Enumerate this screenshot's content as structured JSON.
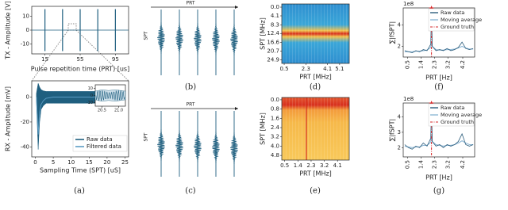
{
  "panels": {
    "a_tx": {
      "ylabel": "TX - Amplitude [V]",
      "xlabel": "Pulse repetition time (PRT) [us]",
      "xlim": [
        0,
        110
      ],
      "ylim": [
        -17,
        17
      ],
      "xticks": [
        15,
        55,
        95
      ],
      "yticks": [
        10,
        0,
        -10
      ],
      "pulses_x": [
        15,
        35,
        55,
        75,
        95
      ],
      "pulse_amplitude": 15,
      "color": "#1f5f7f"
    },
    "a_rx": {
      "ylabel": "RX - Amplitude [mV]",
      "xlabel": "Sampling Time (SPT) [uS]",
      "xlim": [
        -1,
        26
      ],
      "ylim": [
        -48,
        13
      ],
      "xticks": [
        0,
        5,
        10,
        15,
        20,
        25
      ],
      "yticks": [
        0,
        -20,
        -40
      ],
      "legend": "lower right",
      "series": [
        {
          "name": "Raw data",
          "color": "#1f5f7f",
          "x": [
            0.3,
            0.8,
            1.2,
            1.6,
            2.2,
            3,
            5,
            10,
            15,
            20,
            25
          ],
          "upper": [
            3,
            11,
            8,
            6,
            5,
            4.5,
            4.5,
            4.5,
            4.5,
            4.5,
            4.5
          ],
          "lower": [
            -3,
            -42,
            -20,
            -10,
            -7,
            -5,
            -5,
            -5,
            -5,
            -5,
            -5
          ]
        },
        {
          "name": "Filtered data",
          "color": "#5b9cc4",
          "x": [
            0.3,
            0.8,
            1.2,
            1.6,
            2.2,
            3,
            5,
            10,
            15,
            20,
            25
          ],
          "values": [
            0,
            -30,
            -12,
            -6,
            -3,
            -1,
            0,
            0,
            0,
            0,
            0
          ]
        }
      ]
    },
    "a_inset": {
      "xlim": [
        20.3,
        21.2
      ],
      "ylim": [
        -15,
        15
      ],
      "xticks": [
        20.5,
        {
          "value": 21.0,
          "label": "21.0"
        }
      ],
      "yticks": [
        10,
        0,
        -10
      ],
      "x": [
        20.3,
        20.5,
        20.7,
        20.9,
        21.2
      ],
      "upper": [
        6,
        8,
        7,
        8,
        6
      ],
      "lower": [
        -6,
        -8,
        -7,
        -8,
        -6
      ]
    },
    "b": {
      "label": "(b)",
      "prt": "PRT",
      "spt": "SPT"
    },
    "c": {
      "label": "(c)",
      "prt": "PRT",
      "spt": "SPT"
    },
    "a": {
      "label": "(a)"
    },
    "d": {
      "label": "(d)",
      "xlabel": "PRT [MHz]",
      "ylabel": "SPT [MHz]",
      "xlim": [
        0.3,
        5.9
      ],
      "ylim": [
        26.5,
        -1.5
      ],
      "xticks": [
        0.5,
        2.3,
        4.1,
        5.1
      ],
      "yticks": [
        {
          "value": 0.0,
          "label": "0.0"
        },
        4.1,
        8.3,
        12.4,
        16.6,
        20.7,
        24.9
      ]
    },
    "e": {
      "label": "(e)",
      "xlabel": "PRT [MHz]",
      "ylabel": "SPT [MHz]",
      "xlim": [
        0.3,
        4.9
      ],
      "ylim": [
        5.2,
        -0.2
      ],
      "xticks": [
        0.5,
        1.4,
        2.3,
        3.2,
        4.1
      ],
      "yticks": [
        {
          "value": 0.0,
          "label": "0.0"
        },
        0.8,
        1.6,
        2.4,
        3.2,
        {
          "value": 4.0,
          "label": "4.0"
        },
        4.8
      ]
    },
    "f": {
      "label": "(f)",
      "scale": "1e8",
      "xlabel": "PRT [Hz]",
      "ylabel": "∑|fSPT|",
      "xlim": [
        0.2,
        5.0
      ],
      "ylim": [
        1,
        5.6
      ],
      "xticks": [
        0.5,
        1.4,
        2.3,
        3.2,
        4.2
      ],
      "yticks": [
        2,
        4
      ],
      "ground_truth": {
        "name": "Ground truth",
        "x": 2.1,
        "color": "#d62728"
      },
      "series": [
        {
          "name": "Raw data",
          "color": "#2c5d7c",
          "x": [
            0.3,
            0.55,
            0.8,
            1.05,
            1.3,
            1.55,
            1.8,
            2.05,
            2.1,
            2.15,
            2.4,
            2.65,
            2.9,
            3.15,
            3.4,
            3.65,
            3.9,
            4.15,
            4.4,
            4.65,
            4.9
          ],
          "values": [
            1.6,
            1.5,
            1.4,
            1.6,
            1.5,
            1.7,
            1.6,
            2.2,
            5.3,
            2.0,
            1.6,
            1.7,
            1.6,
            1.8,
            1.6,
            1.7,
            1.9,
            2.4,
            1.8,
            1.7,
            1.8
          ]
        },
        {
          "name": "Moving average",
          "color": "#8fb8d6",
          "x": [
            0.3,
            0.55,
            0.8,
            1.05,
            1.3,
            1.55,
            1.8,
            2.05,
            2.1,
            2.15,
            2.4,
            2.65,
            2.9,
            3.15,
            3.4,
            3.65,
            3.9,
            4.15,
            4.4,
            4.65,
            4.9
          ],
          "values": [
            1.5,
            1.5,
            1.5,
            1.55,
            1.55,
            1.6,
            1.65,
            1.9,
            2.4,
            2.0,
            1.7,
            1.65,
            1.65,
            1.7,
            1.7,
            1.75,
            1.85,
            2.0,
            1.85,
            1.75,
            1.75
          ]
        }
      ]
    },
    "g": {
      "label": "(g)",
      "scale": "1e8",
      "xlabel": "PRT [Hz]",
      "ylabel": "∑|fSPT|",
      "xlim": [
        0.2,
        5.0
      ],
      "ylim": [
        1.4,
        4.9
      ],
      "xticks": [
        0.5,
        1.4,
        2.3,
        3.2,
        4.2
      ],
      "yticks": [
        2,
        3,
        4
      ],
      "ground_truth": {
        "name": "Ground truth",
        "x": 2.1,
        "color": "#d62728"
      },
      "series": [
        {
          "name": "Raw data",
          "color": "#2c5d7c",
          "x": [
            0.3,
            0.55,
            0.8,
            1.05,
            1.3,
            1.55,
            1.8,
            2.05,
            2.1,
            2.15,
            2.4,
            2.65,
            2.9,
            3.15,
            3.4,
            3.65,
            3.9,
            4.15,
            4.4,
            4.65,
            4.9
          ],
          "values": [
            2.2,
            2.0,
            1.9,
            2.1,
            2.0,
            2.3,
            2.1,
            2.6,
            4.6,
            2.4,
            2.1,
            2.2,
            2.0,
            2.2,
            2.1,
            2.2,
            2.4,
            2.9,
            2.2,
            2.1,
            2.2
          ]
        },
        {
          "name": "Moving average",
          "color": "#8fb8d6",
          "x": [
            0.3,
            0.55,
            0.8,
            1.05,
            1.3,
            1.55,
            1.8,
            2.05,
            2.1,
            2.15,
            2.4,
            2.65,
            2.9,
            3.15,
            3.4,
            3.65,
            3.9,
            4.15,
            4.4,
            4.65,
            4.9
          ],
          "values": [
            2.1,
            2.05,
            2.0,
            2.05,
            2.05,
            2.15,
            2.15,
            2.35,
            2.8,
            2.4,
            2.2,
            2.15,
            2.1,
            2.15,
            2.15,
            2.2,
            2.3,
            2.45,
            2.3,
            2.2,
            2.2
          ]
        }
      ]
    }
  }
}
